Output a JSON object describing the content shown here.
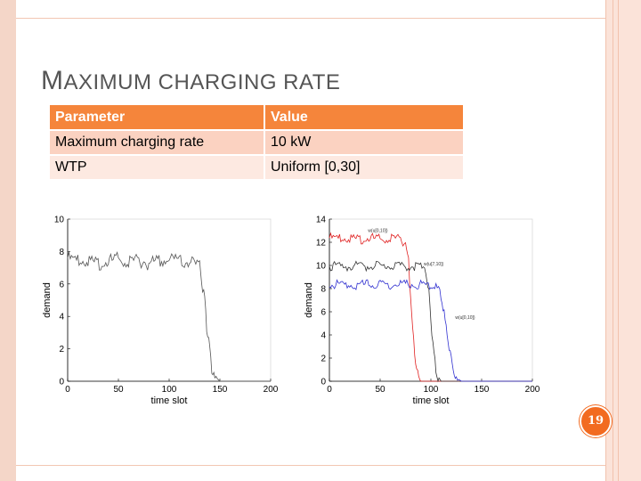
{
  "slide": {
    "title_first": "M",
    "title_rest": "AXIMUM CHARGING RATE",
    "page_number": "19"
  },
  "table": {
    "headers": [
      "Parameter",
      "Value"
    ],
    "rows": [
      [
        "Maximum charging rate",
        "10 kW"
      ],
      [
        "WTP",
        "Uniform [0,30]"
      ]
    ]
  },
  "colors": {
    "accent": "#f26b21",
    "header_bg": "#f5853b",
    "row_bg": "#fbd2c1",
    "row_alt_bg": "#fde9e1",
    "series_red": "#e02020",
    "series_black": "#333333",
    "series_blue": "#3030d0"
  },
  "chart_data": [
    {
      "type": "line",
      "xlabel": "time slot",
      "ylabel": "demand",
      "xlim": [
        0,
        200
      ],
      "ylim": [
        0,
        10
      ],
      "xticks": [
        0,
        50,
        100,
        150,
        200
      ],
      "yticks": [
        0,
        2,
        4,
        6,
        8,
        10
      ],
      "series": [
        {
          "color": "#555555",
          "x": [
            0,
            10,
            20,
            30,
            40,
            50,
            60,
            70,
            80,
            90,
            100,
            110,
            120,
            130,
            132,
            135,
            137,
            140,
            142,
            145,
            150,
            160,
            170,
            180,
            190,
            200
          ],
          "y": [
            7.8,
            7.6,
            7.7,
            7.5,
            7.6,
            7.8,
            7.6,
            7.7,
            7.5,
            7.6,
            7.7,
            7.6,
            7.6,
            7.3,
            6.6,
            5.2,
            3.6,
            2.0,
            0.9,
            0.3,
            0,
            0,
            0,
            0,
            0,
            0
          ]
        }
      ]
    },
    {
      "type": "line",
      "xlabel": "time slot",
      "ylabel": "demand",
      "xlim": [
        0,
        200
      ],
      "ylim": [
        0,
        14
      ],
      "xticks": [
        0,
        50,
        100,
        150,
        200
      ],
      "yticks": [
        0,
        2,
        4,
        6,
        8,
        10,
        12,
        14
      ],
      "annotations": [
        "w(u[0,10])",
        "w(u[7,10])",
        "w(u[0,10])"
      ],
      "series": [
        {
          "color": "#e02020",
          "x": [
            0,
            10,
            20,
            30,
            40,
            50,
            60,
            70,
            75,
            78,
            80,
            82,
            85,
            88,
            90,
            100,
            120,
            150,
            200
          ],
          "y": [
            12.6,
            12.5,
            12.6,
            12.5,
            12.6,
            12.5,
            12.6,
            12.5,
            12.2,
            10.5,
            7.5,
            4.5,
            1.8,
            0.3,
            0,
            0,
            0,
            0,
            0
          ],
          "label_index": 0
        },
        {
          "color": "#333333",
          "x": [
            0,
            10,
            20,
            30,
            40,
            50,
            60,
            70,
            80,
            90,
            95,
            98,
            100,
            102,
            105,
            108,
            110,
            120,
            150,
            200
          ],
          "y": [
            10.2,
            10.1,
            10.2,
            10.1,
            10.2,
            10.1,
            10.2,
            10.1,
            10.2,
            10.1,
            9.6,
            7.8,
            5.5,
            3.4,
            1.4,
            0.3,
            0,
            0,
            0,
            0
          ],
          "label_index": 1
        },
        {
          "color": "#3030d0",
          "x": [
            0,
            10,
            20,
            30,
            40,
            50,
            60,
            70,
            80,
            90,
            100,
            105,
            110,
            113,
            116,
            119,
            122,
            125,
            130,
            150,
            200
          ],
          "y": [
            8.6,
            8.5,
            8.6,
            8.5,
            8.6,
            8.5,
            8.6,
            8.5,
            8.6,
            8.5,
            8.6,
            8.4,
            7.6,
            6.0,
            4.3,
            2.6,
            1.2,
            0.3,
            0,
            0,
            0
          ],
          "label_index": 2
        }
      ]
    }
  ]
}
